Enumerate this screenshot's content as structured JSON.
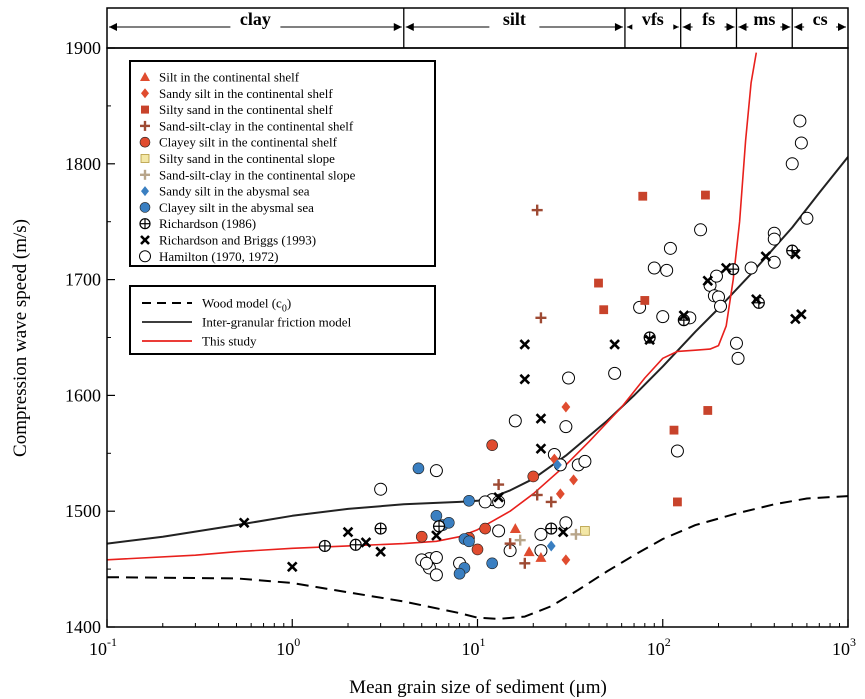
{
  "chart_data": {
    "type": "scatter",
    "xlabel": "Mean grain size of sediment (μm)",
    "ylabel": "Compression wave speed (m/s)",
    "x_scale": "log",
    "xlim": [
      0.1,
      1000
    ],
    "ylim": [
      1400,
      1900
    ],
    "x_ticks": [
      {
        "value": 0.1,
        "base": "10",
        "exp": "-1"
      },
      {
        "value": 1,
        "base": "10",
        "exp": "0"
      },
      {
        "value": 10,
        "base": "10",
        "exp": "1"
      },
      {
        "value": 100,
        "base": "10",
        "exp": "2"
      },
      {
        "value": 1000,
        "base": "10",
        "exp": "3"
      }
    ],
    "y_ticks": [
      {
        "value": 1400,
        "label": "1400"
      },
      {
        "value": 1500,
        "label": "1500"
      },
      {
        "value": 1600,
        "label": "1600"
      },
      {
        "value": 1700,
        "label": "1700"
      },
      {
        "value": 1800,
        "label": "1800"
      },
      {
        "value": 1900,
        "label": "1900"
      }
    ],
    "grain_classes": [
      {
        "label": "clay",
        "from": 0.1,
        "to": 4
      },
      {
        "label": "silt",
        "from": 4,
        "to": 62.5
      },
      {
        "label": "vfs",
        "from": 62.5,
        "to": 125
      },
      {
        "label": "fs",
        "from": 125,
        "to": 250
      },
      {
        "label": "ms",
        "from": 250,
        "to": 500
      },
      {
        "label": "cs",
        "from": 500,
        "to": 1000
      }
    ],
    "legend_points": [
      {
        "label": "Silt in the continental shelf",
        "marker": "triangle",
        "color": "#e04c2f"
      },
      {
        "label": "Sandy silt in the continental shelf",
        "marker": "diamond",
        "color": "#e04c2f"
      },
      {
        "label": "Silty sand in the continental shelf",
        "marker": "square",
        "color": "#c8432b"
      },
      {
        "label": "Sand-silt-clay in the continental shelf",
        "marker": "plus",
        "color": "#9e4a33"
      },
      {
        "label": "Clayey silt in the continental shelf",
        "marker": "circle",
        "color": "#e04c2f"
      },
      {
        "label": "Silty sand in the continental slope",
        "marker": "square",
        "color": "#f3e7a6"
      },
      {
        "label": "Sand-silt-clay in the continental slope",
        "marker": "plus",
        "color": "#b8a58a"
      },
      {
        "label": "Sandy silt in the abysmal sea",
        "marker": "diamond",
        "color": "#3a7fc1"
      },
      {
        "label": "Clayey silt in the abysmal sea",
        "marker": "circle",
        "color": "#3a7fc1"
      },
      {
        "label": "Richardson (1986)",
        "marker": "circle-plus",
        "color": "#000000"
      },
      {
        "label": "Richardson and Briggs (1993)",
        "marker": "x",
        "color": "#000000"
      },
      {
        "label": "Hamilton (1970, 1972)",
        "marker": "open-circle",
        "color": "#000000"
      }
    ],
    "legend_lines": [
      {
        "label": "Wood model (c",
        "sub": "0",
        "suffix": ")",
        "style": "dashed",
        "color": "#000000"
      },
      {
        "label": "Inter-granular friction model",
        "style": "solid",
        "color": "#222222"
      },
      {
        "label": "This study",
        "style": "solid",
        "color": "#e8201c"
      }
    ],
    "series": [
      {
        "name": "Wood model (c0)",
        "type": "line",
        "color": "#000000",
        "points": [
          [
            0.1,
            1443
          ],
          [
            0.5,
            1442
          ],
          [
            1,
            1438
          ],
          [
            2,
            1430
          ],
          [
            4,
            1422
          ],
          [
            8,
            1412
          ],
          [
            10,
            1408
          ],
          [
            13,
            1407
          ],
          [
            18,
            1409
          ],
          [
            25,
            1418
          ],
          [
            35,
            1432
          ],
          [
            50,
            1448
          ],
          [
            70,
            1462
          ],
          [
            100,
            1476
          ],
          [
            150,
            1488
          ],
          [
            250,
            1498
          ],
          [
            400,
            1506
          ],
          [
            600,
            1511
          ],
          [
            1000,
            1513
          ]
        ]
      },
      {
        "name": "Inter-granular friction model",
        "type": "line",
        "color": "#222222",
        "points": [
          [
            0.1,
            1472
          ],
          [
            0.2,
            1478
          ],
          [
            0.5,
            1488
          ],
          [
            1,
            1496
          ],
          [
            2,
            1502
          ],
          [
            4,
            1506
          ],
          [
            8,
            1508
          ],
          [
            10,
            1509
          ],
          [
            12,
            1512
          ],
          [
            15,
            1518
          ],
          [
            20,
            1528
          ],
          [
            30,
            1548
          ],
          [
            50,
            1578
          ],
          [
            70,
            1600
          ],
          [
            100,
            1625
          ],
          [
            150,
            1655
          ],
          [
            200,
            1675
          ],
          [
            300,
            1705
          ],
          [
            500,
            1745
          ],
          [
            700,
            1775
          ],
          [
            1000,
            1806
          ]
        ]
      },
      {
        "name": "This study",
        "type": "line",
        "color": "#e8201c",
        "points": [
          [
            0.1,
            1458
          ],
          [
            0.3,
            1462
          ],
          [
            0.5,
            1465
          ],
          [
            1,
            1468
          ],
          [
            2,
            1470
          ],
          [
            4,
            1472
          ],
          [
            6,
            1474
          ],
          [
            8,
            1478
          ],
          [
            10,
            1484
          ],
          [
            15,
            1500
          ],
          [
            20,
            1515
          ],
          [
            30,
            1540
          ],
          [
            40,
            1560
          ],
          [
            60,
            1590
          ],
          [
            80,
            1615
          ],
          [
            100,
            1632
          ],
          [
            120,
            1638
          ],
          [
            150,
            1639
          ],
          [
            180,
            1640
          ],
          [
            200,
            1643
          ],
          [
            220,
            1660
          ],
          [
            240,
            1700
          ],
          [
            260,
            1750
          ],
          [
            280,
            1820
          ],
          [
            300,
            1870
          ],
          [
            320,
            1896
          ]
        ]
      },
      {
        "name": "Silt in the continental shelf",
        "marker": "triangle",
        "color": "#e04c2f",
        "points": [
          [
            16,
            1485
          ],
          [
            22,
            1460
          ],
          [
            19,
            1465
          ]
        ]
      },
      {
        "name": "Sandy silt in the continental shelf",
        "marker": "diamond",
        "color": "#e04c2f",
        "points": [
          [
            30,
            1590
          ],
          [
            26,
            1545
          ],
          [
            33,
            1527
          ],
          [
            28,
            1515
          ],
          [
            30,
            1458
          ]
        ]
      },
      {
        "name": "Silty sand in the continental shelf",
        "marker": "square",
        "color": "#c8432b",
        "points": [
          [
            78,
            1772
          ],
          [
            120,
            1508
          ],
          [
            80,
            1682
          ],
          [
            170,
            1773
          ],
          [
            115,
            1570
          ],
          [
            175,
            1587
          ],
          [
            45,
            1697
          ],
          [
            48,
            1674
          ]
        ]
      },
      {
        "name": "Sand-silt-clay in the continental shelf",
        "marker": "plus",
        "color": "#9e4a33",
        "points": [
          [
            21,
            1760
          ],
          [
            22,
            1667
          ],
          [
            13,
            1523
          ],
          [
            15,
            1472
          ],
          [
            21,
            1514
          ],
          [
            25,
            1508
          ],
          [
            18,
            1455
          ]
        ]
      },
      {
        "name": "Clayey silt in the continental shelf",
        "marker": "circle",
        "color": "#e04c2f",
        "points": [
          [
            12,
            1557
          ],
          [
            20,
            1530
          ],
          [
            11,
            1485
          ],
          [
            9,
            1477
          ],
          [
            5,
            1478
          ],
          [
            10,
            1467
          ]
        ]
      },
      {
        "name": "Silty sand in the continental slope",
        "marker": "square",
        "color": "#f3e7a6",
        "points": [
          [
            38,
            1483
          ]
        ]
      },
      {
        "name": "Sand-silt-clay in the continental slope",
        "marker": "plus",
        "color": "#b8a58a",
        "points": [
          [
            34,
            1480
          ],
          [
            17,
            1475
          ]
        ]
      },
      {
        "name": "Sandy silt in the abysmal sea",
        "marker": "diamond",
        "color": "#3a7fc1",
        "points": [
          [
            27,
            1540
          ],
          [
            25,
            1470
          ]
        ]
      },
      {
        "name": "Clayey silt in the abysmal sea",
        "marker": "circle",
        "color": "#3a7fc1",
        "points": [
          [
            4.8,
            1537
          ],
          [
            6,
            1496
          ],
          [
            6.5,
            1488
          ],
          [
            7,
            1490
          ],
          [
            8.5,
            1476
          ],
          [
            9,
            1509
          ],
          [
            9,
            1474
          ],
          [
            8.5,
            1451
          ],
          [
            12,
            1455
          ],
          [
            8,
            1446
          ]
        ]
      },
      {
        "name": "Richardson (1986)",
        "marker": "circle-plus",
        "color": "#000000",
        "points": [
          [
            1.5,
            1470
          ],
          [
            2.2,
            1471
          ],
          [
            3,
            1485
          ],
          [
            6.2,
            1487
          ],
          [
            25,
            1485
          ],
          [
            85,
            1650
          ],
          [
            130,
            1665
          ],
          [
            240,
            1709
          ],
          [
            330,
            1680
          ],
          [
            500,
            1725
          ]
        ]
      },
      {
        "name": "Richardson and Briggs (1993)",
        "marker": "x",
        "color": "#000000",
        "points": [
          [
            0.55,
            1490
          ],
          [
            1,
            1452
          ],
          [
            2,
            1482
          ],
          [
            2.5,
            1473
          ],
          [
            3,
            1465
          ],
          [
            6,
            1479
          ],
          [
            13,
            1512
          ],
          [
            18,
            1614
          ],
          [
            18,
            1644
          ],
          [
            22,
            1554
          ],
          [
            22,
            1580
          ],
          [
            29,
            1482
          ],
          [
            55,
            1644
          ],
          [
            85,
            1648
          ],
          [
            130,
            1669
          ],
          [
            175,
            1699
          ],
          [
            220,
            1710
          ],
          [
            320,
            1683
          ],
          [
            360,
            1720
          ],
          [
            520,
            1722
          ],
          [
            520,
            1666
          ],
          [
            560,
            1670
          ]
        ]
      },
      {
        "name": "Hamilton (1970, 1972)",
        "marker": "open-circle",
        "color": "#000000",
        "points": [
          [
            550,
            1837
          ],
          [
            560,
            1818
          ],
          [
            500,
            1800
          ],
          [
            600,
            1753
          ],
          [
            400,
            1740
          ],
          [
            400,
            1735
          ],
          [
            300,
            1710
          ],
          [
            400,
            1715
          ],
          [
            160,
            1743
          ],
          [
            110,
            1727
          ],
          [
            90,
            1710
          ],
          [
            105,
            1708
          ],
          [
            75,
            1676
          ],
          [
            100,
            1668
          ],
          [
            180,
            1695
          ],
          [
            190,
            1686
          ],
          [
            200,
            1685
          ],
          [
            205,
            1677
          ],
          [
            195,
            1703
          ],
          [
            250,
            1645
          ],
          [
            255,
            1632
          ],
          [
            140,
            1667
          ],
          [
            120,
            1552
          ],
          [
            55,
            1619
          ],
          [
            35,
            1540
          ],
          [
            30,
            1573
          ],
          [
            31,
            1615
          ],
          [
            30,
            1490
          ],
          [
            22,
            1480
          ],
          [
            22,
            1466
          ],
          [
            15,
            1466
          ],
          [
            13,
            1483
          ],
          [
            12,
            1510
          ],
          [
            13,
            1508
          ],
          [
            6,
            1535
          ],
          [
            3,
            1519
          ],
          [
            5.5,
            1459
          ],
          [
            5.5,
            1451
          ],
          [
            6,
            1445
          ],
          [
            6,
            1460
          ],
          [
            5,
            1458
          ],
          [
            5.3,
            1455
          ],
          [
            8,
            1455
          ],
          [
            11,
            1508
          ],
          [
            16,
            1578
          ],
          [
            26,
            1549
          ],
          [
            28,
            1540
          ],
          [
            38,
            1543
          ]
        ]
      }
    ]
  }
}
